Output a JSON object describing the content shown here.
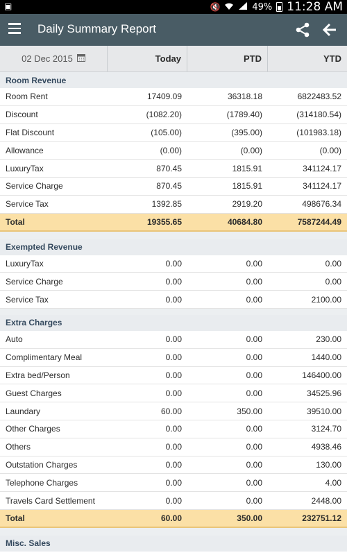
{
  "status_bar": {
    "left_icon": "notification-icon",
    "battery_percent": "49%",
    "time": "11:28 AM"
  },
  "app_bar": {
    "title": "Daily Summary Report",
    "icons": [
      "menu-icon",
      "share-icon",
      "back-arrow-icon"
    ]
  },
  "columns": {
    "date": "02 Dec 2015",
    "today": "Today",
    "ptd": "PTD",
    "ytd": "YTD"
  },
  "sections": [
    {
      "title": "Room Revenue",
      "rows": [
        {
          "label": "Room Rent",
          "today": "17409.09",
          "ptd": "36318.18",
          "ytd": "6822483.52"
        },
        {
          "label": "Discount",
          "today": "(1082.20)",
          "ptd": "(1789.40)",
          "ytd": "(314180.54)"
        },
        {
          "label": "Flat Discount",
          "today": "(105.00)",
          "ptd": "(395.00)",
          "ytd": "(101983.18)"
        },
        {
          "label": "Allowance",
          "today": "(0.00)",
          "ptd": "(0.00)",
          "ytd": "(0.00)"
        },
        {
          "label": "LuxuryTax",
          "today": "870.45",
          "ptd": "1815.91",
          "ytd": "341124.17"
        },
        {
          "label": "Service Charge",
          "today": "870.45",
          "ptd": "1815.91",
          "ytd": "341124.17"
        },
        {
          "label": "Service Tax",
          "today": "1392.85",
          "ptd": "2919.20",
          "ytd": "498676.34"
        }
      ],
      "total": {
        "label": "Total",
        "today": "19355.65",
        "ptd": "40684.80",
        "ytd": "7587244.49"
      }
    },
    {
      "title": "Exempted Revenue",
      "rows": [
        {
          "label": "LuxuryTax",
          "today": "0.00",
          "ptd": "0.00",
          "ytd": "0.00"
        },
        {
          "label": "Service Charge",
          "today": "0.00",
          "ptd": "0.00",
          "ytd": "0.00"
        },
        {
          "label": "Service Tax",
          "today": "0.00",
          "ptd": "0.00",
          "ytd": "2100.00"
        }
      ]
    },
    {
      "title": "Extra Charges",
      "rows": [
        {
          "label": "Auto",
          "today": "0.00",
          "ptd": "0.00",
          "ytd": "230.00"
        },
        {
          "label": "Complimentary Meal",
          "today": "0.00",
          "ptd": "0.00",
          "ytd": "1440.00"
        },
        {
          "label": "Extra bed/Person",
          "today": "0.00",
          "ptd": "0.00",
          "ytd": "146400.00"
        },
        {
          "label": "Guest Charges",
          "today": "0.00",
          "ptd": "0.00",
          "ytd": "34525.96"
        },
        {
          "label": "Laundary",
          "today": "60.00",
          "ptd": "350.00",
          "ytd": "39510.00"
        },
        {
          "label": "Other Charges",
          "today": "0.00",
          "ptd": "0.00",
          "ytd": "3124.70"
        },
        {
          "label": "Others",
          "today": "0.00",
          "ptd": "0.00",
          "ytd": "4938.46"
        },
        {
          "label": "Outstation Charges",
          "today": "0.00",
          "ptd": "0.00",
          "ytd": "130.00"
        },
        {
          "label": "Telephone Charges",
          "today": "0.00",
          "ptd": "0.00",
          "ytd": "4.00"
        },
        {
          "label": "Travels Card Settlement",
          "today": "0.00",
          "ptd": "0.00",
          "ytd": "2448.00"
        }
      ],
      "total": {
        "label": "Total",
        "today": "60.00",
        "ptd": "350.00",
        "ytd": "232751.12"
      }
    },
    {
      "title": "Misc. Sales",
      "rows": []
    }
  ]
}
